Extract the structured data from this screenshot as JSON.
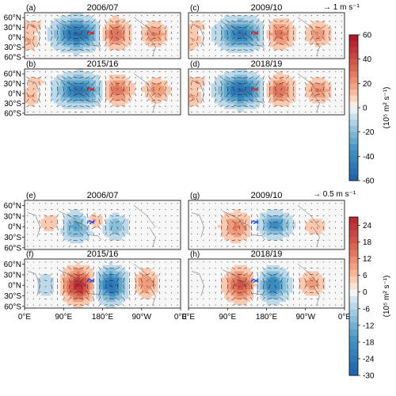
{
  "chart_data": {
    "type": "heatmap",
    "projection": "equirectangular",
    "panels": [
      {
        "letter": "(a)",
        "title": "2006/07",
        "group": "upper",
        "vector_color": "#d7191c"
      },
      {
        "letter": "(c)",
        "title": "2009/10",
        "group": "upper",
        "vector_color": "#d7191c"
      },
      {
        "letter": "(b)",
        "title": "2015/16",
        "group": "upper",
        "vector_color": "#d7191c"
      },
      {
        "letter": "(d)",
        "title": "2018/19",
        "group": "upper",
        "vector_color": "#d7191c"
      },
      {
        "letter": "(e)",
        "title": "2006/07",
        "group": "lower",
        "vector_color": "#1f3fff"
      },
      {
        "letter": "(g)",
        "title": "2009/10",
        "group": "lower",
        "vector_color": "#1f3fff"
      },
      {
        "letter": "(f)",
        "title": "2015/16",
        "group": "lower",
        "vector_color": "#1f3fff"
      },
      {
        "letter": "(h)",
        "title": "2018/19",
        "group": "lower",
        "vector_color": "#1f3fff"
      }
    ],
    "lat_ticks": [
      "60°N",
      "30°N",
      "0°N",
      "30°S",
      "60°S"
    ],
    "lat_values": [
      60,
      30,
      0,
      -30,
      -60
    ],
    "lon_ticks": [
      "0°E",
      "90°E",
      "180°E",
      "90°W",
      "0°E"
    ],
    "lon_values": [
      0,
      90,
      180,
      270,
      360
    ],
    "upper_colorbar": {
      "ticks": [
        "60",
        "40",
        "20",
        "0",
        "-20",
        "-40",
        "-60"
      ],
      "tick_values": [
        60,
        40,
        20,
        0,
        -20,
        -40,
        -60
      ],
      "range": [
        -60,
        60
      ],
      "units_label": "(10⁵ m² s⁻¹)"
    },
    "lower_colorbar": {
      "ticks": [
        "24",
        "18",
        "12",
        "6",
        "0",
        "-6",
        "-12",
        "-18",
        "-24",
        "-30"
      ],
      "tick_values": [
        24,
        18,
        12,
        6,
        0,
        -6,
        -12,
        -18,
        -24,
        -30
      ],
      "range": [
        -30,
        27
      ],
      "units_label": "(10⁵ m² s⁻¹)"
    },
    "upper_reference_vector": "→ 1 m s⁻¹",
    "lower_reference_vector": "→ 0.5 m s⁻¹",
    "colors": {
      "negative_strong": "#2d6aa8",
      "negative_light": "#c8ddef",
      "neutral": "#f7f7f7",
      "positive_light": "#f6cfb8",
      "positive_strong": "#b2182b"
    },
    "representative_centers": [
      {
        "panel": "(a)",
        "lon": 115,
        "lat": 15,
        "value": -55
      },
      {
        "panel": "(a)",
        "lon": 210,
        "lat": 10,
        "value": 35
      },
      {
        "panel": "(f)",
        "lon": 125,
        "lat": 0,
        "value": 24
      },
      {
        "panel": "(f)",
        "lon": 200,
        "lat": 0,
        "value": -28
      }
    ]
  }
}
